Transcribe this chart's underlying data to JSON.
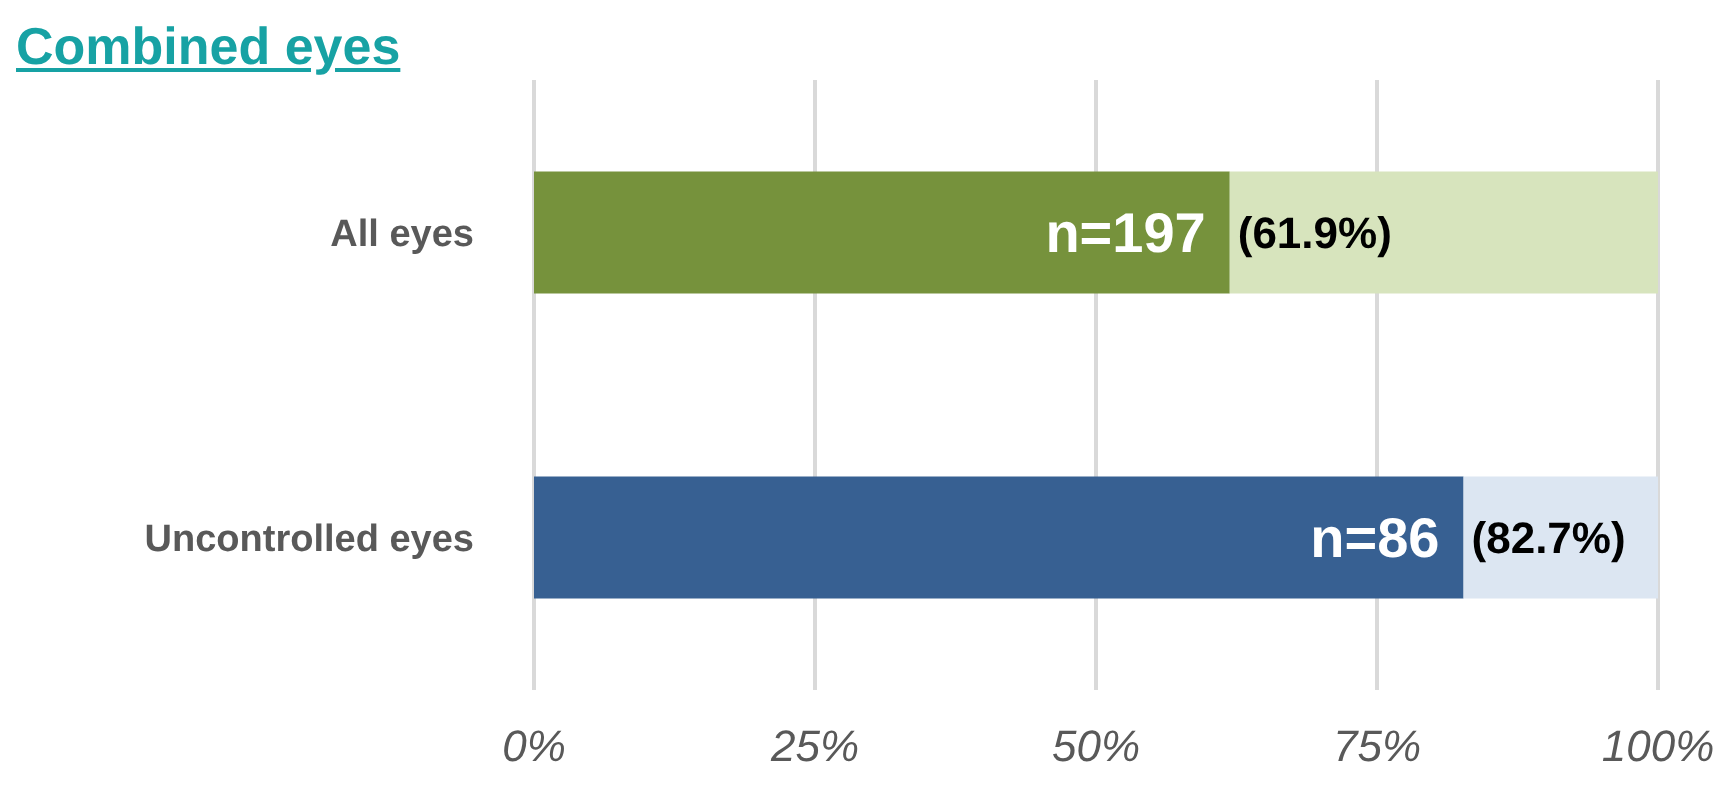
{
  "chart_data": {
    "type": "bar",
    "title": "Combined eyes",
    "orientation": "horizontal",
    "stacked": true,
    "categories": [
      "All eyes",
      "Uncontrolled eyes"
    ],
    "series": [
      {
        "colors": [
          "#76923c",
          "#376092"
        ],
        "values": [
          61.9,
          82.7
        ]
      },
      {
        "colors": [
          "#d7e4bd",
          "#dce6f2"
        ],
        "values": [
          38.1,
          17.3
        ]
      }
    ],
    "annotations": [
      "n=197",
      "(61.9%)",
      "n=86",
      "(82.7%)"
    ],
    "xlim": [
      0,
      100
    ],
    "xticks": [
      {
        "value": 0,
        "label": "0%"
      },
      {
        "value": 25,
        "label": "25%"
      },
      {
        "value": 50,
        "label": "50%"
      },
      {
        "value": 75,
        "label": "75%"
      },
      {
        "value": 100,
        "label": "100%"
      }
    ],
    "grid": "x"
  }
}
